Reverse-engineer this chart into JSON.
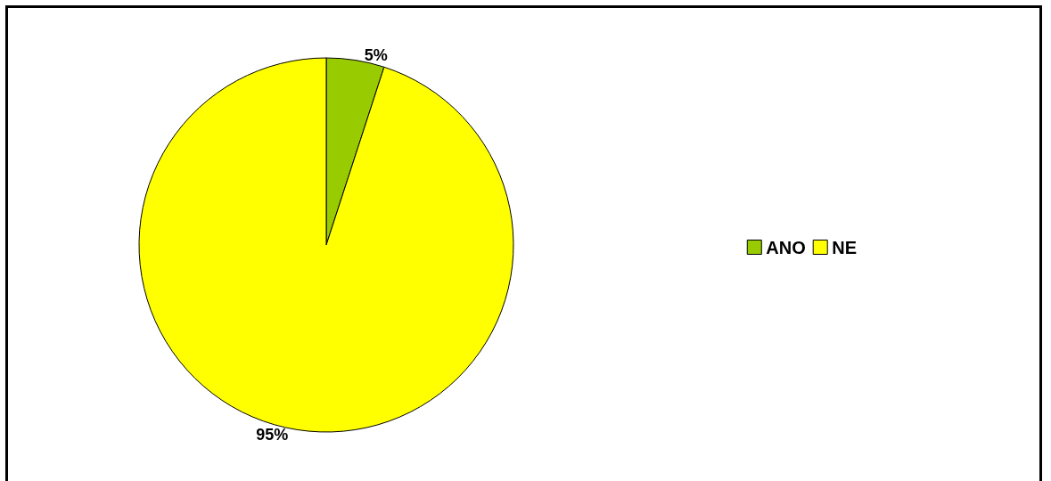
{
  "chart_data": {
    "type": "pie",
    "categories": [
      "ANO",
      "NE"
    ],
    "values": [
      5,
      95
    ],
    "colors": [
      "#99cc00",
      "#ffff00"
    ],
    "value_labels": [
      "5%",
      "95%"
    ],
    "legend": "right"
  }
}
